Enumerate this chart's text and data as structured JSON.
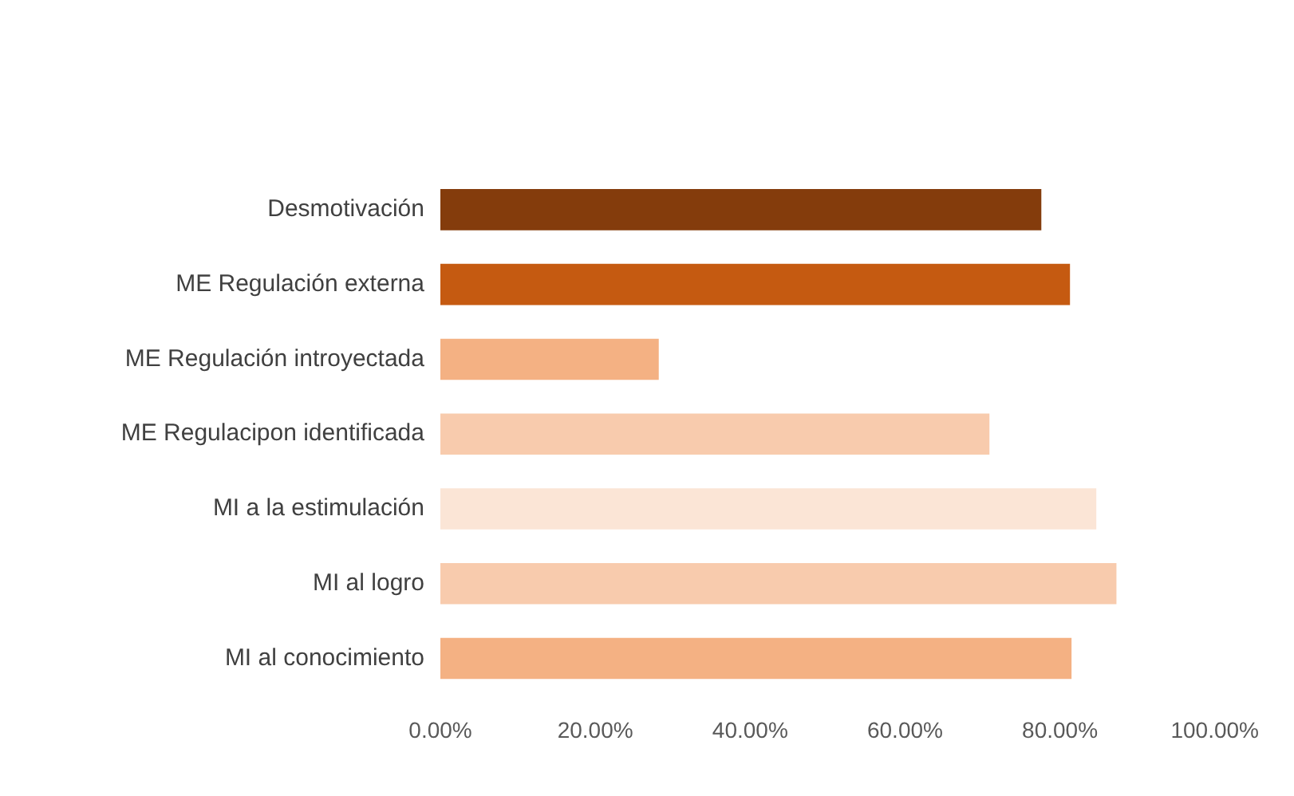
{
  "chart_data": {
    "type": "bar",
    "orientation": "horizontal",
    "categories": [
      "Desmotivación",
      "ME Regulación externa",
      "ME Regulación introyectada",
      "ME Regulacipon identificada",
      "MI a la estimulación",
      "MI al logro",
      "MI al conocimiento"
    ],
    "values": [
      77.6,
      81.3,
      28.2,
      70.9,
      84.7,
      87.3,
      81.5
    ],
    "colors": [
      "#843c0c",
      "#c55a11",
      "#f4b183",
      "#f8cbad",
      "#fbe5d6",
      "#f8cbad",
      "#f4b183"
    ],
    "xlim": [
      0,
      100
    ],
    "xticks": [
      {
        "value": 0,
        "label": "0.00%"
      },
      {
        "value": 20,
        "label": "20.00%"
      },
      {
        "value": 40,
        "label": "40.00%"
      },
      {
        "value": 60,
        "label": "60.00%"
      },
      {
        "value": 80,
        "label": "80.00%"
      },
      {
        "value": 100,
        "label": "100.00%"
      }
    ],
    "grid": false,
    "legend": false
  }
}
